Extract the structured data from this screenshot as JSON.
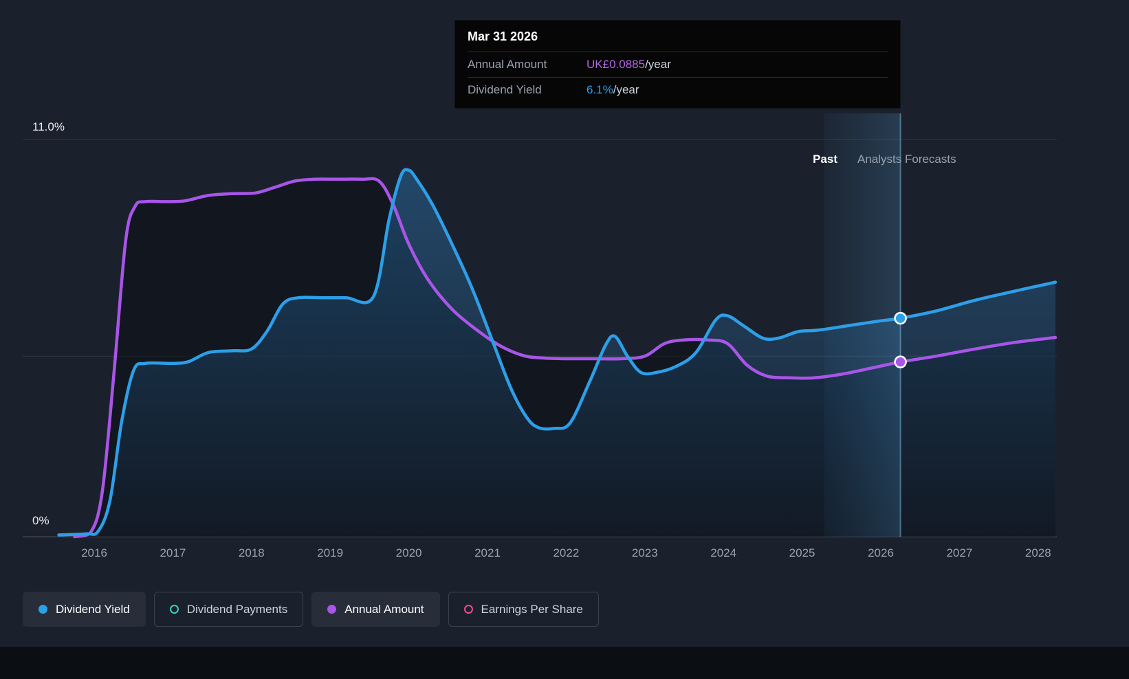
{
  "page": {
    "background": "#1b212c"
  },
  "tooltip": {
    "date": "Mar 31 2026",
    "rows": [
      {
        "label": "Annual Amount",
        "value": "UK£0.0885",
        "suffix": "/year",
        "color": "#b467e6"
      },
      {
        "label": "Dividend Yield",
        "value": "6.1%",
        "suffix": "/year",
        "color": "#2d9fe8"
      }
    ]
  },
  "axis_labels": {
    "y_top": "11.0%",
    "y_bottom": "0%"
  },
  "period_labels": {
    "past": "Past",
    "forecast": "Analysts Forecasts"
  },
  "legend": [
    {
      "label": "Dividend Yield",
      "color": "#2d9fe8",
      "marker": "filled",
      "active": true
    },
    {
      "label": "Dividend Payments",
      "color": "#3ecfbe",
      "marker": "open",
      "active": false
    },
    {
      "label": "Annual Amount",
      "color": "#a855e8",
      "marker": "filled",
      "active": true
    },
    {
      "label": "Earnings Per Share",
      "color": "#eb4d8f",
      "marker": "open",
      "active": false
    }
  ],
  "chart_data": {
    "type": "line",
    "y_axis": {
      "min": 0,
      "max": 11,
      "unit": "%",
      "gridlines": [
        11,
        5
      ],
      "baseline": 0,
      "labels": {
        "top": "11.0%",
        "bottom": "0%"
      }
    },
    "x_axis": {
      "ticks": [
        2016,
        2017,
        2018,
        2019,
        2020,
        2021,
        2022,
        2023,
        2024,
        2025,
        2026,
        2027,
        2028
      ]
    },
    "highlight": {
      "from": 2025.28,
      "to": 2026.25
    },
    "series": [
      {
        "name": "Dividend Yield",
        "color": "#2d9fe8",
        "unit": "%",
        "points": [
          [
            2015.55,
            0.05
          ],
          [
            2015.9,
            0.08
          ],
          [
            2016.05,
            0.15
          ],
          [
            2016.2,
            1.0
          ],
          [
            2016.35,
            3.2
          ],
          [
            2016.5,
            4.6
          ],
          [
            2016.65,
            4.8
          ],
          [
            2017.0,
            4.8
          ],
          [
            2017.2,
            4.85
          ],
          [
            2017.45,
            5.1
          ],
          [
            2017.75,
            5.15
          ],
          [
            2018.0,
            5.2
          ],
          [
            2018.2,
            5.7
          ],
          [
            2018.4,
            6.45
          ],
          [
            2018.6,
            6.62
          ],
          [
            2018.9,
            6.62
          ],
          [
            2019.2,
            6.62
          ],
          [
            2019.55,
            6.65
          ],
          [
            2019.75,
            8.8
          ],
          [
            2019.9,
            10.0
          ],
          [
            2020.0,
            10.15
          ],
          [
            2020.1,
            9.9
          ],
          [
            2020.3,
            9.2
          ],
          [
            2020.55,
            8.1
          ],
          [
            2020.8,
            6.9
          ],
          [
            2021.05,
            5.5
          ],
          [
            2021.3,
            4.1
          ],
          [
            2021.5,
            3.3
          ],
          [
            2021.65,
            3.02
          ],
          [
            2021.85,
            3.0
          ],
          [
            2022.05,
            3.15
          ],
          [
            2022.3,
            4.3
          ],
          [
            2022.5,
            5.3
          ],
          [
            2022.62,
            5.55
          ],
          [
            2022.78,
            5.0
          ],
          [
            2022.95,
            4.55
          ],
          [
            2023.15,
            4.55
          ],
          [
            2023.4,
            4.72
          ],
          [
            2023.65,
            5.1
          ],
          [
            2023.9,
            6.0
          ],
          [
            2024.05,
            6.12
          ],
          [
            2024.25,
            5.85
          ],
          [
            2024.5,
            5.5
          ],
          [
            2024.7,
            5.5
          ],
          [
            2024.95,
            5.68
          ],
          [
            2025.2,
            5.72
          ],
          [
            2025.6,
            5.85
          ],
          [
            2026.0,
            5.98
          ],
          [
            2026.25,
            6.05
          ],
          [
            2026.7,
            6.25
          ],
          [
            2027.2,
            6.55
          ],
          [
            2027.7,
            6.8
          ],
          [
            2028.22,
            7.05
          ]
        ]
      },
      {
        "name": "Annual Amount",
        "color": "#a855e8",
        "unit": "plotted on % scale",
        "points": [
          [
            2015.75,
            0.0
          ],
          [
            2015.95,
            0.1
          ],
          [
            2016.1,
            1.2
          ],
          [
            2016.25,
            4.5
          ],
          [
            2016.4,
            8.2
          ],
          [
            2016.52,
            9.15
          ],
          [
            2016.65,
            9.28
          ],
          [
            2016.9,
            9.28
          ],
          [
            2017.15,
            9.3
          ],
          [
            2017.45,
            9.45
          ],
          [
            2017.75,
            9.5
          ],
          [
            2018.05,
            9.52
          ],
          [
            2018.3,
            9.68
          ],
          [
            2018.55,
            9.85
          ],
          [
            2018.8,
            9.9
          ],
          [
            2019.1,
            9.9
          ],
          [
            2019.4,
            9.9
          ],
          [
            2019.62,
            9.85
          ],
          [
            2019.8,
            9.2
          ],
          [
            2020.0,
            8.1
          ],
          [
            2020.25,
            7.1
          ],
          [
            2020.55,
            6.3
          ],
          [
            2020.85,
            5.75
          ],
          [
            2021.15,
            5.3
          ],
          [
            2021.45,
            5.02
          ],
          [
            2021.7,
            4.95
          ],
          [
            2022.0,
            4.93
          ],
          [
            2022.35,
            4.93
          ],
          [
            2022.7,
            4.93
          ],
          [
            2023.0,
            5.0
          ],
          [
            2023.25,
            5.35
          ],
          [
            2023.5,
            5.45
          ],
          [
            2023.8,
            5.45
          ],
          [
            2024.05,
            5.35
          ],
          [
            2024.3,
            4.75
          ],
          [
            2024.55,
            4.45
          ],
          [
            2024.85,
            4.4
          ],
          [
            2025.15,
            4.4
          ],
          [
            2025.5,
            4.5
          ],
          [
            2025.9,
            4.68
          ],
          [
            2026.25,
            4.84
          ],
          [
            2026.7,
            5.0
          ],
          [
            2027.2,
            5.2
          ],
          [
            2027.7,
            5.38
          ],
          [
            2028.22,
            5.52
          ]
        ]
      }
    ],
    "markers": [
      {
        "series": "Dividend Yield",
        "x": 2026.25,
        "y": 6.05
      },
      {
        "series": "Annual Amount",
        "x": 2026.25,
        "y": 4.84
      }
    ]
  }
}
